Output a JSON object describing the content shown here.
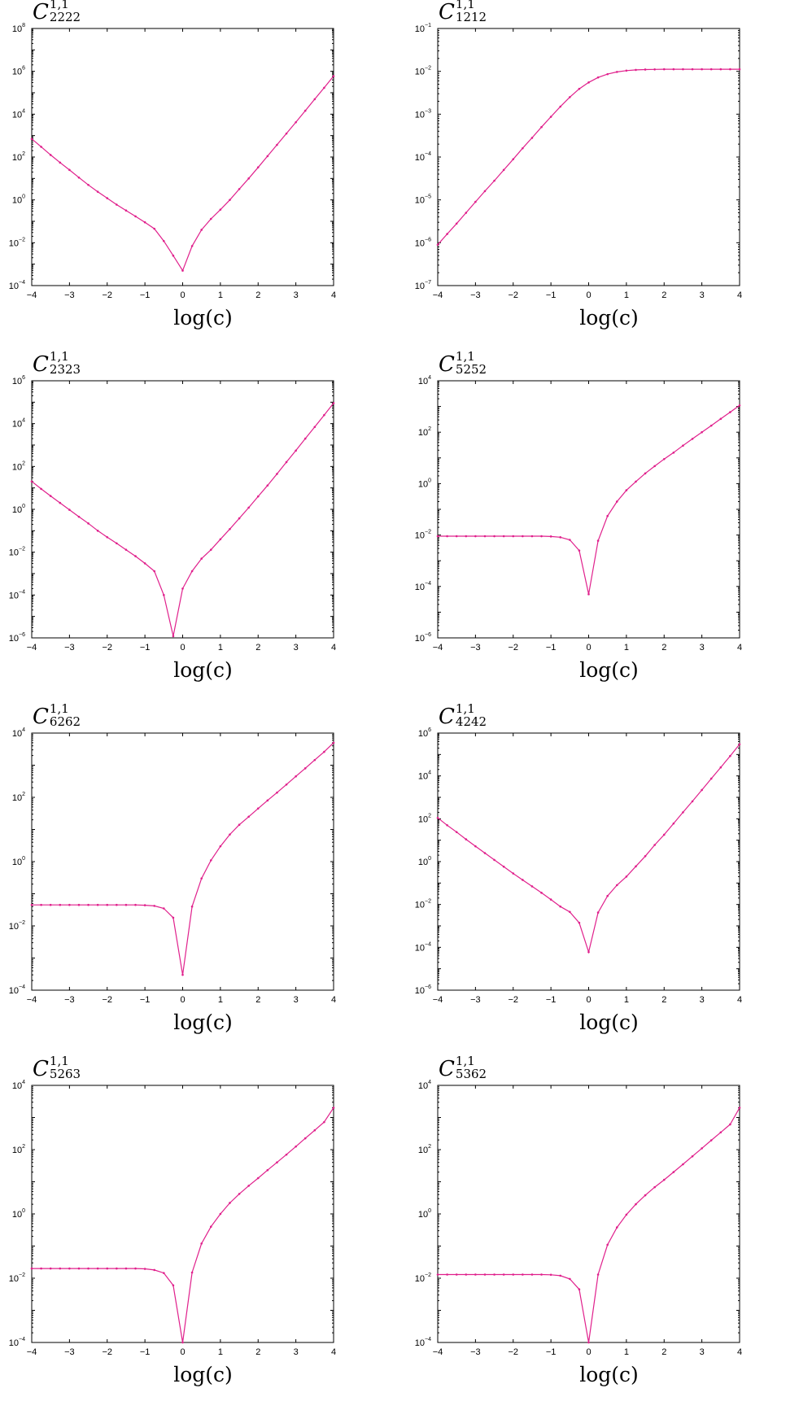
{
  "line_color": "#e0208c",
  "chart_data": [
    {
      "type": "line",
      "title": {
        "base": "C",
        "sup": "1,1",
        "sub": "2222"
      },
      "xlabel": "log(c)",
      "xlim": [
        -4,
        4
      ],
      "ylim": [
        0.0001,
        100000000
      ],
      "yscale": "log",
      "xticks": [
        -4,
        -3,
        -2,
        -1,
        0,
        1,
        2,
        3,
        4
      ],
      "ytick_exponents": [
        -4,
        -2,
        0,
        2,
        4,
        6,
        8
      ],
      "x": [
        -4,
        -3.75,
        -3.5,
        -3.25,
        -3,
        -2.75,
        -2.5,
        -2.25,
        -2,
        -1.75,
        -1.5,
        -1.25,
        -1,
        -0.75,
        -0.5,
        -0.25,
        0,
        0.25,
        0.5,
        0.75,
        1,
        1.25,
        1.5,
        1.75,
        2,
        2.25,
        2.5,
        2.75,
        3,
        3.25,
        3.5,
        3.75,
        4
      ],
      "y": [
        700,
        300,
        125,
        55,
        25,
        11,
        5,
        2.4,
        1.2,
        0.6,
        0.32,
        0.17,
        0.09,
        0.045,
        0.012,
        0.0025,
        0.0005,
        0.007,
        0.04,
        0.13,
        0.35,
        1,
        3.2,
        10,
        33,
        110,
        370,
        1250,
        4200,
        14500,
        50000,
        170000,
        600000
      ]
    },
    {
      "type": "line",
      "title": {
        "base": "C",
        "sup": "1,1",
        "sub": "1212"
      },
      "xlabel": "log(c)",
      "xlim": [
        -4,
        4
      ],
      "ylim": [
        1e-07,
        0.1
      ],
      "yscale": "log",
      "xticks": [
        -4,
        -3,
        -2,
        -1,
        0,
        1,
        2,
        3,
        4
      ],
      "ytick_exponents": [
        -7,
        -6,
        -5,
        -4,
        -3,
        -2,
        -1
      ],
      "x": [
        -4,
        -3.75,
        -3.5,
        -3.25,
        -3,
        -2.75,
        -2.5,
        -2.25,
        -2,
        -1.75,
        -1.5,
        -1.25,
        -1,
        -0.75,
        -0.5,
        -0.25,
        0,
        0.25,
        0.5,
        0.75,
        1,
        1.25,
        1.5,
        1.75,
        2,
        2.25,
        2.5,
        2.75,
        3,
        3.25,
        3.5,
        3.75,
        4
      ],
      "y": [
        9e-07,
        1.6e-06,
        2.8e-06,
        5e-06,
        9e-06,
        1.6e-05,
        2.8e-05,
        5e-05,
        8.9e-05,
        0.00016,
        0.00028,
        0.0005,
        0.00087,
        0.0015,
        0.0025,
        0.0039,
        0.0055,
        0.0072,
        0.0086,
        0.0097,
        0.0104,
        0.0108,
        0.011,
        0.0111,
        0.0112,
        0.0112,
        0.0112,
        0.0112,
        0.0112,
        0.0112,
        0.0112,
        0.0112,
        0.0112
      ]
    },
    {
      "type": "line",
      "title": {
        "base": "C",
        "sup": "1,1",
        "sub": "2323"
      },
      "xlabel": "log(c)",
      "xlim": [
        -4,
        4
      ],
      "ylim": [
        1e-06,
        1000000
      ],
      "yscale": "log",
      "xticks": [
        -4,
        -3,
        -2,
        -1,
        0,
        1,
        2,
        3,
        4
      ],
      "ytick_exponents": [
        -6,
        -4,
        -2,
        0,
        2,
        4,
        6
      ],
      "x": [
        -4,
        -3.75,
        -3.5,
        -3.25,
        -3,
        -2.75,
        -2.5,
        -2.25,
        -2,
        -1.75,
        -1.5,
        -1.25,
        -1,
        -0.75,
        -0.5,
        -0.25,
        0,
        0.25,
        0.5,
        0.75,
        1,
        1.25,
        1.5,
        1.75,
        2,
        2.25,
        2.5,
        2.75,
        3,
        3.25,
        3.5,
        3.75,
        4
      ],
      "y": [
        20,
        9,
        4.2,
        2,
        0.95,
        0.45,
        0.22,
        0.1,
        0.05,
        0.026,
        0.013,
        0.0065,
        0.003,
        0.0013,
        0.0001,
        1.2e-06,
        0.0002,
        0.0013,
        0.005,
        0.013,
        0.04,
        0.12,
        0.38,
        1.2,
        4,
        13,
        45,
        160,
        550,
        2000,
        7000,
        25000,
        90000
      ]
    },
    {
      "type": "line",
      "title": {
        "base": "C",
        "sup": "1,1",
        "sub": "5252"
      },
      "xlabel": "log(c)",
      "xlim": [
        -4,
        4
      ],
      "ylim": [
        1e-06,
        10000
      ],
      "yscale": "log",
      "xticks": [
        -4,
        -3,
        -2,
        -1,
        0,
        1,
        2,
        3,
        4
      ],
      "ytick_exponents": [
        -6,
        -4,
        -2,
        0,
        2,
        4
      ],
      "x": [
        -4,
        -3.75,
        -3.5,
        -3.25,
        -3,
        -2.75,
        -2.5,
        -2.25,
        -2,
        -1.75,
        -1.5,
        -1.25,
        -1,
        -0.75,
        -0.5,
        -0.25,
        0,
        0.25,
        0.5,
        0.75,
        1,
        1.25,
        1.5,
        1.75,
        2,
        2.25,
        2.5,
        2.75,
        3,
        3.25,
        3.5,
        3.75,
        4
      ],
      "y": [
        0.009,
        0.009,
        0.009,
        0.009,
        0.009,
        0.009,
        0.009,
        0.009,
        0.009,
        0.009,
        0.009,
        0.009,
        0.0088,
        0.0082,
        0.0065,
        0.0025,
        5e-05,
        0.006,
        0.055,
        0.2,
        0.55,
        1.2,
        2.5,
        4.8,
        9,
        16,
        30,
        55,
        100,
        180,
        330,
        600,
        1100
      ]
    },
    {
      "type": "line",
      "title": {
        "base": "C",
        "sup": "1,1",
        "sub": "6262"
      },
      "xlabel": "log(c)",
      "xlim": [
        -4,
        4
      ],
      "ylim": [
        0.0001,
        10000
      ],
      "yscale": "log",
      "xticks": [
        -4,
        -3,
        -2,
        -1,
        0,
        1,
        2,
        3,
        4
      ],
      "ytick_exponents": [
        -4,
        -2,
        0,
        2,
        4
      ],
      "x": [
        -4,
        -3.75,
        -3.5,
        -3.25,
        -3,
        -2.75,
        -2.5,
        -2.25,
        -2,
        -1.75,
        -1.5,
        -1.25,
        -1,
        -0.75,
        -0.5,
        -0.25,
        0,
        0.25,
        0.5,
        0.75,
        1,
        1.25,
        1.5,
        1.75,
        2,
        2.25,
        2.5,
        2.75,
        3,
        3.25,
        3.5,
        3.75,
        4
      ],
      "y": [
        0.045,
        0.045,
        0.045,
        0.045,
        0.045,
        0.045,
        0.045,
        0.045,
        0.045,
        0.045,
        0.045,
        0.045,
        0.044,
        0.042,
        0.035,
        0.018,
        0.0003,
        0.04,
        0.3,
        1.1,
        3,
        7,
        14,
        25,
        45,
        80,
        140,
        250,
        450,
        800,
        1450,
        2600,
        5000
      ]
    },
    {
      "type": "line",
      "title": {
        "base": "C",
        "sup": "1,1",
        "sub": "4242"
      },
      "xlabel": "log(c)",
      "xlim": [
        -4,
        4
      ],
      "ylim": [
        1e-06,
        1000000
      ],
      "yscale": "log",
      "xticks": [
        -4,
        -3,
        -2,
        -1,
        0,
        1,
        2,
        3,
        4
      ],
      "ytick_exponents": [
        -6,
        -4,
        -2,
        0,
        2,
        4,
        6
      ],
      "x": [
        -4,
        -3.75,
        -3.5,
        -3.25,
        -3,
        -2.75,
        -2.5,
        -2.25,
        -2,
        -1.75,
        -1.5,
        -1.25,
        -1,
        -0.75,
        -0.5,
        -0.25,
        0,
        0.25,
        0.5,
        0.75,
        1,
        1.25,
        1.5,
        1.75,
        2,
        2.25,
        2.5,
        2.75,
        3,
        3.25,
        3.5,
        3.75,
        4
      ],
      "y": [
        110,
        50,
        24,
        11,
        5.2,
        2.5,
        1.2,
        0.58,
        0.28,
        0.14,
        0.07,
        0.035,
        0.017,
        0.008,
        0.0045,
        0.0014,
        6e-05,
        0.0042,
        0.025,
        0.08,
        0.2,
        0.6,
        1.8,
        6,
        18,
        60,
        200,
        650,
        2200,
        7500,
        25000,
        85000,
        300000
      ]
    },
    {
      "type": "line",
      "title": {
        "base": "C",
        "sup": "1,1",
        "sub": "5263"
      },
      "xlabel": "log(c)",
      "xlim": [
        -4,
        4
      ],
      "ylim": [
        0.0001,
        10000
      ],
      "yscale": "log",
      "xticks": [
        -4,
        -3,
        -2,
        -1,
        0,
        1,
        2,
        3,
        4
      ],
      "ytick_exponents": [
        -4,
        -2,
        0,
        2,
        4
      ],
      "x": [
        -4,
        -3.75,
        -3.5,
        -3.25,
        -3,
        -2.75,
        -2.5,
        -2.25,
        -2,
        -1.75,
        -1.5,
        -1.25,
        -1,
        -0.75,
        -0.5,
        -0.25,
        0,
        0.25,
        0.5,
        0.75,
        1,
        1.25,
        1.5,
        1.75,
        2,
        2.25,
        2.5,
        2.75,
        3,
        3.25,
        3.5,
        3.75,
        4
      ],
      "y": [
        0.02,
        0.02,
        0.02,
        0.02,
        0.02,
        0.02,
        0.02,
        0.02,
        0.02,
        0.02,
        0.02,
        0.02,
        0.0195,
        0.018,
        0.0145,
        0.006,
        0.0001,
        0.015,
        0.12,
        0.4,
        1,
        2.2,
        4.2,
        7.5,
        13,
        23,
        40,
        70,
        125,
        225,
        400,
        720,
        2000
      ]
    },
    {
      "type": "line",
      "title": {
        "base": "C",
        "sup": "1,1",
        "sub": "5362"
      },
      "xlabel": "log(c)",
      "xlim": [
        -4,
        4
      ],
      "ylim": [
        0.0001,
        10000
      ],
      "yscale": "log",
      "xticks": [
        -4,
        -3,
        -2,
        -1,
        0,
        1,
        2,
        3,
        4
      ],
      "ytick_exponents": [
        -4,
        -2,
        0,
        2,
        4
      ],
      "x": [
        -4,
        -3.75,
        -3.5,
        -3.25,
        -3,
        -2.75,
        -2.5,
        -2.25,
        -2,
        -1.75,
        -1.5,
        -1.25,
        -1,
        -0.75,
        -0.5,
        -0.25,
        0,
        0.25,
        0.5,
        0.75,
        1,
        1.25,
        1.5,
        1.75,
        2,
        2.25,
        2.5,
        2.75,
        3,
        3.25,
        3.5,
        3.75,
        4
      ],
      "y": [
        0.013,
        0.013,
        0.013,
        0.013,
        0.013,
        0.013,
        0.013,
        0.013,
        0.013,
        0.013,
        0.013,
        0.013,
        0.0128,
        0.012,
        0.0095,
        0.0045,
        0.0001,
        0.013,
        0.11,
        0.38,
        0.95,
        2,
        3.8,
        6.8,
        11.5,
        20,
        35,
        62,
        110,
        195,
        345,
        610,
        2000
      ]
    }
  ]
}
